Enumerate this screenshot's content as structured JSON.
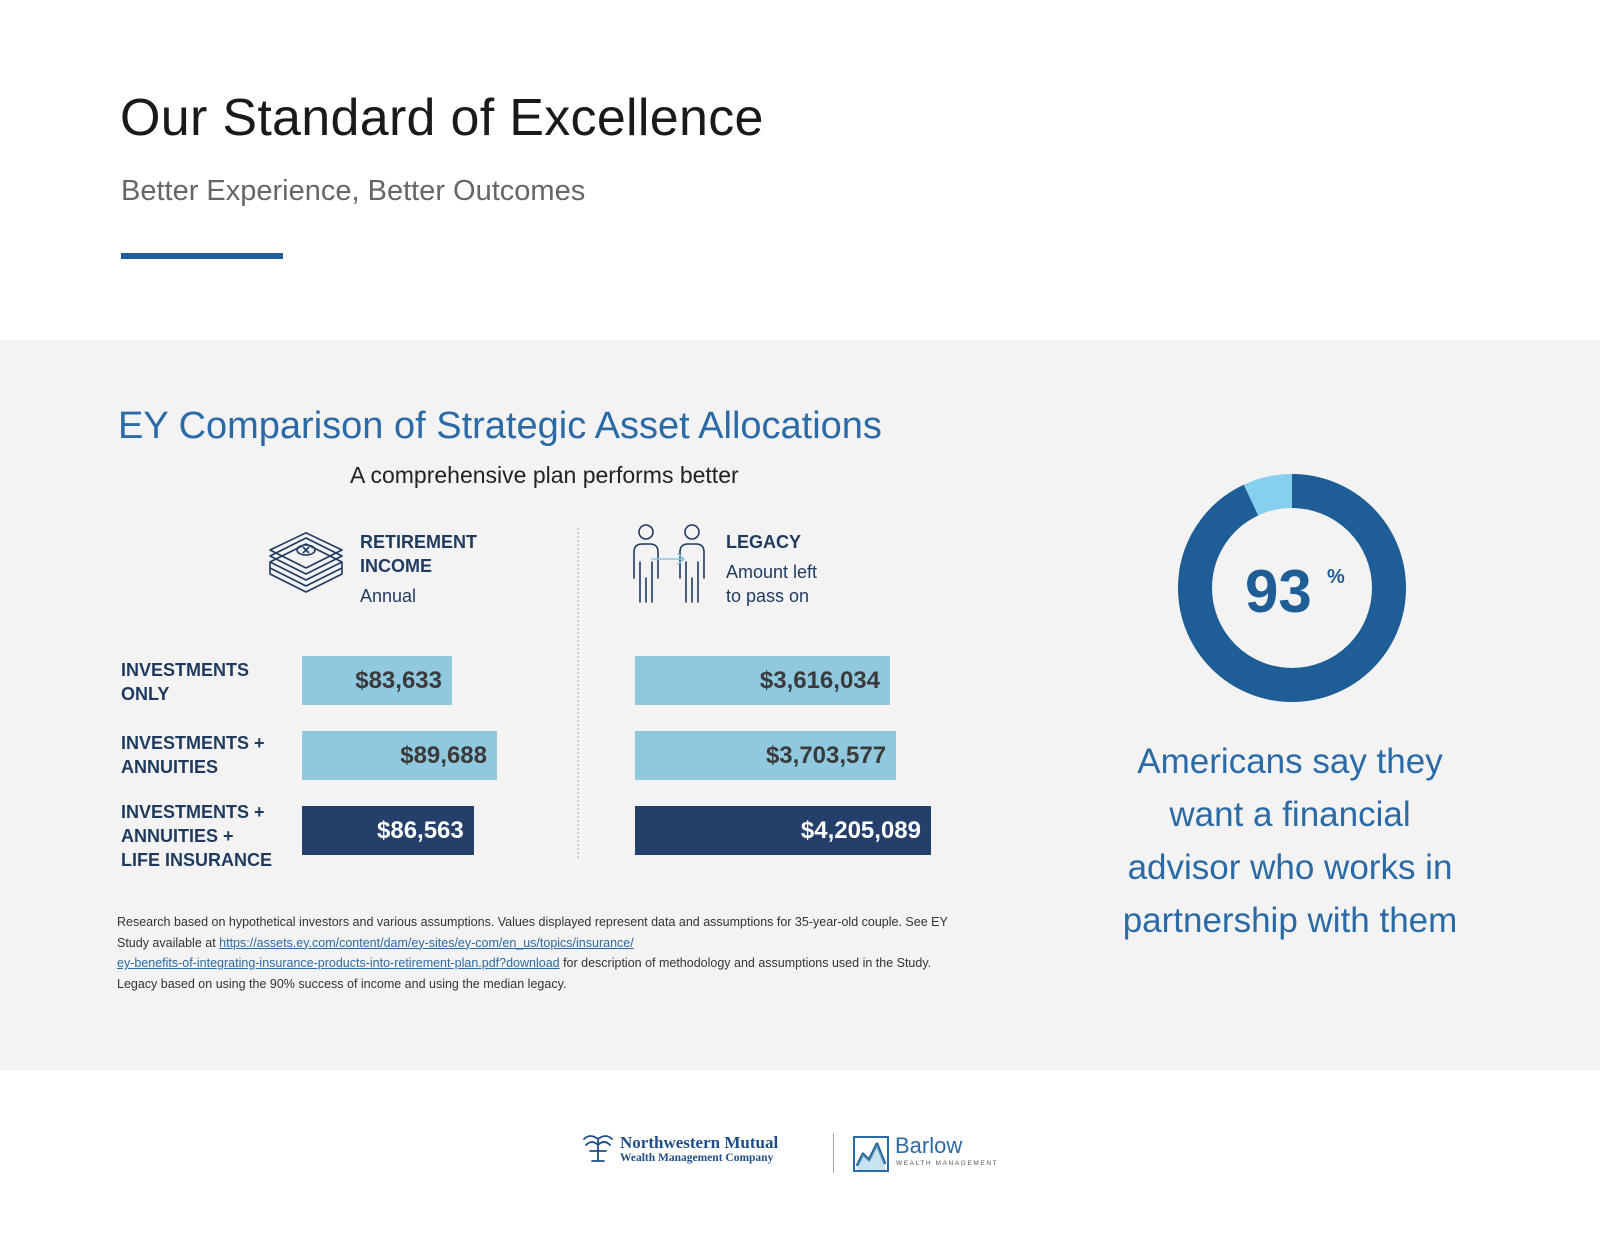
{
  "header": {
    "title": "Our Standard of Excellence",
    "subtitle": "Better Experience, Better Outcomes"
  },
  "comparison": {
    "title": "EY Comparison of Strategic Asset Allocations",
    "subtitle": "A comprehensive plan performs better",
    "columns": {
      "retirement": {
        "head_line1": "RETIREMENT",
        "head_line2": "INCOME",
        "sub_line1": "Annual",
        "icon": "money-stack-icon"
      },
      "legacy": {
        "head_line1": "LEGACY",
        "sub_line1": "Amount left",
        "sub_line2": "to pass on",
        "icon": "people-transfer-icon"
      }
    },
    "rows": [
      {
        "label_line1": "INVESTMENTS",
        "label_line2": "ONLY",
        "label_line3": "",
        "retirement": "$83,633",
        "legacy": "$3,616,034"
      },
      {
        "label_line1": "INVESTMENTS +",
        "label_line2": "ANNUITIES",
        "label_line3": "",
        "retirement": "$89,688",
        "legacy": "$3,703,577"
      },
      {
        "label_line1": "INVESTMENTS +",
        "label_line2": "ANNUITIES +",
        "label_line3": "LIFE INSURANCE",
        "retirement": "$86,563",
        "legacy": "$4,205,089"
      }
    ],
    "footnote": {
      "part1": "Research based on hypothetical investors and various assumptions. Values displayed represent data and assumptions for 35-year-old couple. See EY Study available at ",
      "link_line1": "https://assets.ey.com/content/dam/ey-sites/ey-com/en_us/topics/insurance/",
      "link_line2": "ey-benefits-of-integrating-insurance-products-into-retirement-plan.pdf?download",
      "part2": " for description of methodology and assumptions used in the Study. Legacy based on using the 90% success of income and using the median legacy."
    }
  },
  "stat": {
    "value": "93",
    "unit": "%",
    "fraction": 0.93,
    "line1": "Americans say they",
    "line2": "want a financial",
    "line3": "advisor who works in",
    "line4": "partnership with them"
  },
  "chart_data": {
    "type": "bar",
    "categories": [
      "INVESTMENTS ONLY",
      "INVESTMENTS + ANNUITIES",
      "INVESTMENTS + ANNUITIES + LIFE INSURANCE"
    ],
    "series": [
      {
        "name": "RETIREMENT INCOME",
        "values": [
          83633,
          89688,
          86563
        ]
      },
      {
        "name": "LEGACY",
        "values": [
          3616034,
          3703577,
          4205089
        ]
      }
    ]
  },
  "footer": {
    "nm_name": "Northwestern Mutual",
    "nm_sub": "Wealth Management Company",
    "barlow_name": "Barlow",
    "barlow_sub": "WEALTH MANAGEMENT"
  },
  "colors": {
    "primary_blue": "#1f5d96",
    "light_blue": "#8fc8df",
    "navy": "#24406a",
    "donut_light": "#86d0ef"
  }
}
